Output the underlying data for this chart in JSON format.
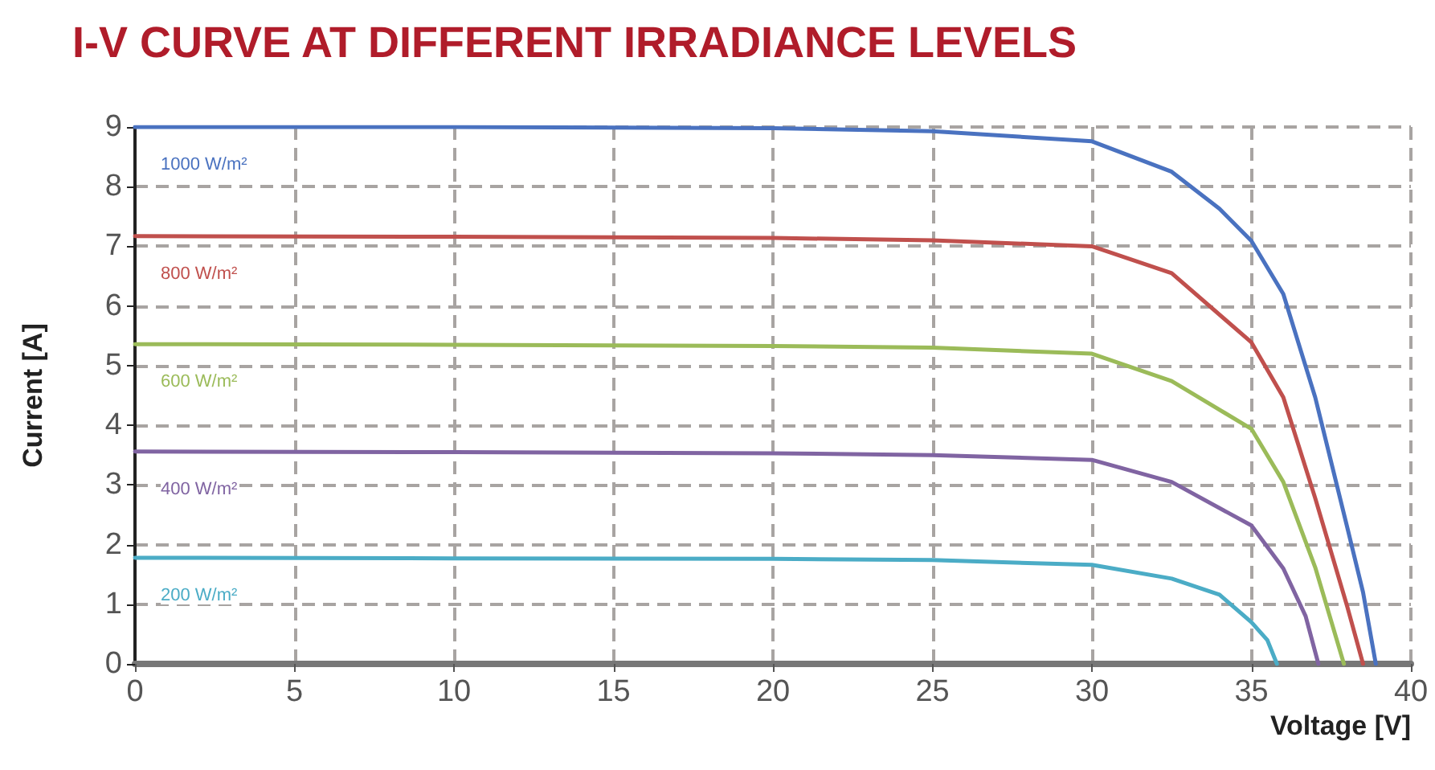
{
  "chart_data": {
    "type": "line",
    "title": "I-V CURVE AT DIFFERENT IRRADIANCE LEVELS",
    "xlabel": "Voltage [V]",
    "ylabel": "Current [A]",
    "xlim": [
      0,
      40
    ],
    "xticks": [
      0,
      5,
      10,
      15,
      20,
      25,
      30,
      35,
      40
    ],
    "ylim": [
      0,
      9
    ],
    "yticks": [
      0,
      1,
      2,
      3,
      4,
      5,
      6,
      7,
      8,
      9
    ],
    "grid": true,
    "legend": false,
    "marker": "none",
    "line_style": "solid",
    "series": [
      {
        "name": "1000 W/m²",
        "color": "#4a72c0",
        "x": [
          0,
          10,
          20,
          25,
          30,
          32.5,
          34,
          35,
          36,
          37,
          38,
          38.5,
          38.9
        ],
        "values": [
          9.0,
          9.0,
          8.98,
          8.93,
          8.76,
          8.25,
          7.63,
          7.09,
          6.2,
          4.47,
          2.3,
          1.2,
          0
        ]
      },
      {
        "name": "800 W/m²",
        "color": "#c0504d",
        "x": [
          0,
          10,
          20,
          25,
          30,
          32.5,
          35,
          36,
          37,
          38,
          38.5
        ],
        "values": [
          7.17,
          7.16,
          7.14,
          7.1,
          7.0,
          6.55,
          5.39,
          4.47,
          2.78,
          0.97,
          0
        ]
      },
      {
        "name": "600 W/m²",
        "color": "#9bbb59",
        "x": [
          0,
          10,
          20,
          25,
          30,
          32.5,
          35,
          36,
          37,
          37.9
        ],
        "values": [
          5.36,
          5.35,
          5.33,
          5.3,
          5.2,
          4.74,
          3.94,
          3.05,
          1.62,
          0
        ]
      },
      {
        "name": "400 W/m²",
        "color": "#8064a2",
        "x": [
          0,
          10,
          20,
          25,
          30,
          32.5,
          35,
          36,
          36.7,
          37.1
        ],
        "values": [
          3.56,
          3.55,
          3.53,
          3.5,
          3.42,
          3.05,
          2.32,
          1.6,
          0.8,
          0
        ]
      },
      {
        "name": "200 W/m²",
        "color": "#4bacc6",
        "x": [
          0,
          10,
          20,
          25,
          30,
          32.5,
          34,
          35,
          35.5,
          35.8
        ],
        "values": [
          1.78,
          1.77,
          1.76,
          1.74,
          1.66,
          1.43,
          1.16,
          0.7,
          0.4,
          0
        ]
      }
    ]
  }
}
